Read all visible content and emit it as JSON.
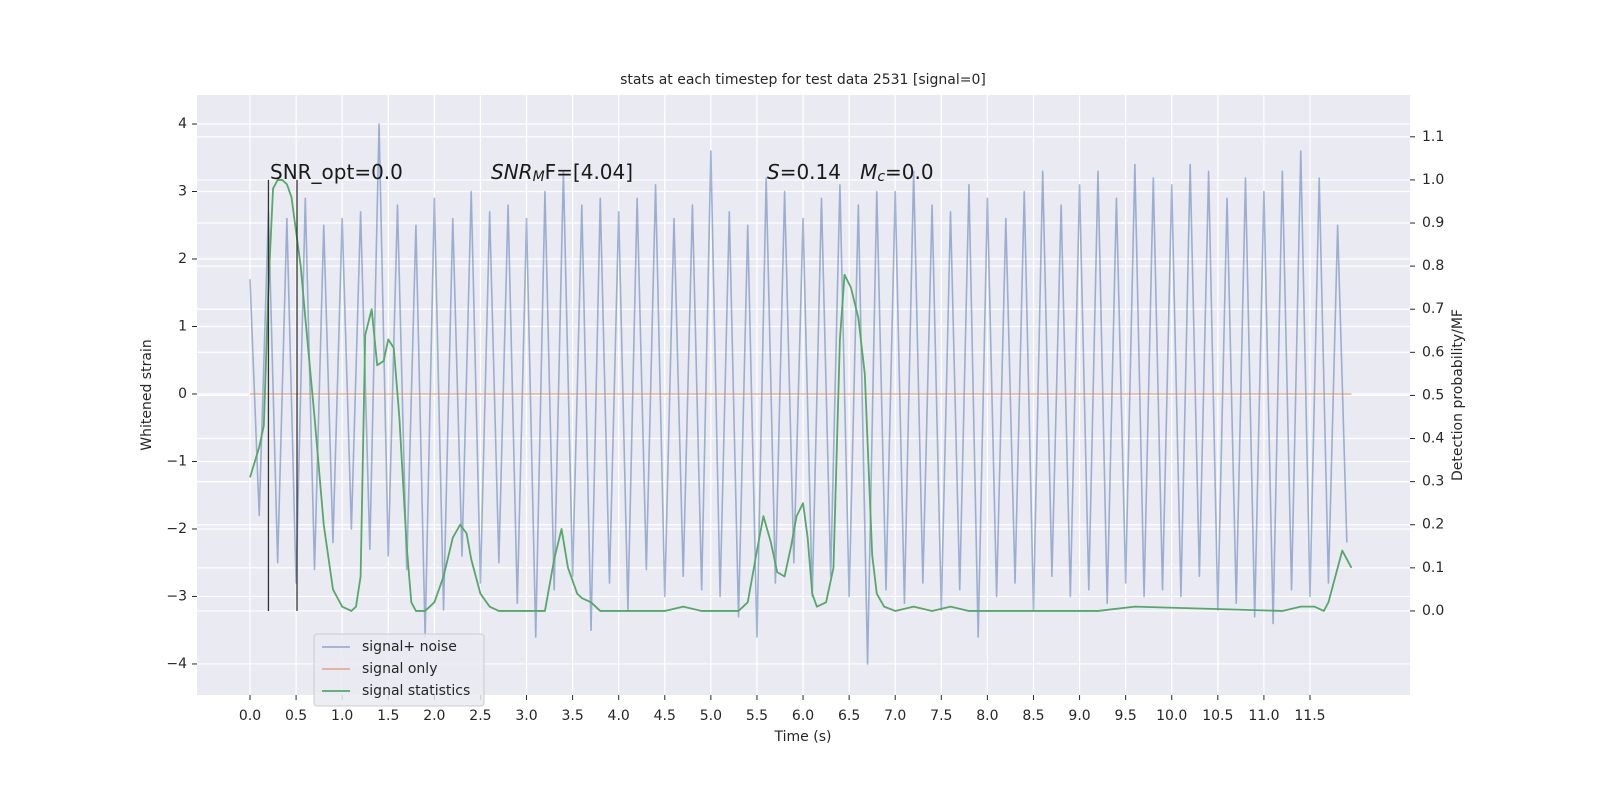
{
  "chart_data": {
    "type": "line",
    "title": "stats at each timestep for test data 2531 [signal=0]",
    "xlabel": "Time (s)",
    "ylabel": "Whitened strain",
    "y2label": "Detection probability/MF",
    "background": "#eaeaf2",
    "grid": true,
    "legend": "lower left",
    "xlim": [
      -0.575,
      12.585
    ],
    "ylim": [
      -4.46,
      4.43
    ],
    "y2lim": [
      -0.195,
      1.197
    ],
    "xticks": [
      {
        "value": 0,
        "label": "0.0"
      },
      0.5,
      {
        "value": 1,
        "label": "1.0"
      },
      1.5,
      {
        "value": 2,
        "label": "2.0"
      },
      2.5,
      {
        "value": 3,
        "label": "3.0"
      },
      3.5,
      {
        "value": 4,
        "label": "4.0"
      },
      4.5,
      {
        "value": 5,
        "label": "5.0"
      },
      5.5,
      {
        "value": 6,
        "label": "6.0"
      },
      6.5,
      {
        "value": 7,
        "label": "7.0"
      },
      7.5,
      {
        "value": 8,
        "label": "8.0"
      },
      8.5,
      {
        "value": 9,
        "label": "9.0"
      },
      9.5,
      {
        "value": 10,
        "label": "10.0"
      },
      10.5,
      {
        "value": 11,
        "label": "11.0"
      },
      11.5
    ],
    "yticks": [
      {
        "value": -4,
        "label": "−4"
      },
      {
        "value": -3,
        "label": "−3"
      },
      {
        "value": -2,
        "label": "−2"
      },
      {
        "value": -1,
        "label": "−1"
      },
      0,
      1,
      2,
      3,
      4
    ],
    "y2ticks": [
      {
        "value": 0,
        "label": "0.0"
      },
      0.1,
      0.2,
      0.3,
      0.4,
      0.5,
      0.6,
      0.7,
      0.8,
      0.9,
      {
        "value": 1,
        "label": "1.0"
      },
      1.1
    ],
    "annotations": [
      {
        "runs": [
          {
            "text": "SNR_opt=0.0"
          }
        ]
      },
      {
        "runs": [
          {
            "text": "SNR",
            "style": "italic"
          },
          {
            "text": "M",
            "style": "italic-sub"
          },
          {
            "text": "F=[4.04]"
          }
        ]
      },
      {
        "runs": [
          {
            "text": "S",
            "style": "italic"
          },
          {
            "text": "=0.14   "
          },
          {
            "text": "M",
            "style": "italic"
          },
          {
            "text": "c",
            "style": "italic-sub"
          },
          {
            "text": "=0.0"
          }
        ]
      }
    ],
    "vlines": {
      "x": [
        0.2,
        0.51
      ],
      "ymin": 0,
      "ymax": 1,
      "axis": "y2",
      "color": "#333333"
    },
    "series": [
      {
        "name": "signal+ noise",
        "color": "#4c72b0",
        "opacity": 0.5,
        "x": [
          0.0,
          0.1,
          0.2,
          0.3,
          0.4,
          0.5,
          0.6,
          0.7,
          0.8,
          0.9,
          1.0,
          1.1,
          1.2,
          1.3,
          1.4,
          1.5,
          1.6,
          1.7,
          1.8,
          1.9,
          2.0,
          2.1,
          2.2,
          2.3,
          2.4,
          2.5,
          2.6,
          2.7,
          2.8,
          2.9,
          3.0,
          3.1,
          3.2,
          3.3,
          3.4,
          3.5,
          3.6,
          3.7,
          3.8,
          3.9,
          4.0,
          4.1,
          4.2,
          4.3,
          4.4,
          4.5,
          4.6,
          4.7,
          4.8,
          4.9,
          5.0,
          5.1,
          5.2,
          5.3,
          5.4,
          5.5,
          5.6,
          5.7,
          5.8,
          5.9,
          6.0,
          6.1,
          6.2,
          6.3,
          6.4,
          6.5,
          6.6,
          6.7,
          6.8,
          6.9,
          7.0,
          7.1,
          7.2,
          7.3,
          7.4,
          7.5,
          7.6,
          7.7,
          7.8,
          7.9,
          8.0,
          8.1,
          8.2,
          8.3,
          8.4,
          8.5,
          8.6,
          8.7,
          8.8,
          8.9,
          9.0,
          9.1,
          9.2,
          9.3,
          9.4,
          9.5,
          9.6,
          9.7,
          9.8,
          9.9,
          10.0,
          10.1,
          10.2,
          10.3,
          10.4,
          10.5,
          10.6,
          10.7,
          10.8,
          10.9,
          11.0,
          11.1,
          11.2,
          11.3,
          11.4,
          11.5,
          11.6,
          11.7,
          11.8,
          11.9
        ],
        "values": [
          1.7,
          -1.8,
          2.7,
          -2.5,
          2.6,
          -2.8,
          2.9,
          -2.6,
          2.5,
          -2.2,
          2.6,
          -2.0,
          2.7,
          -2.3,
          4.0,
          -2.4,
          2.8,
          -2.6,
          2.5,
          -3.6,
          2.9,
          -3.2,
          2.6,
          -2.4,
          3.0,
          -2.8,
          2.7,
          -2.5,
          2.8,
          -3.1,
          2.6,
          -3.6,
          3.0,
          -2.9,
          3.3,
          -2.7,
          2.8,
          -3.5,
          2.9,
          -2.8,
          2.7,
          -3.2,
          2.9,
          -2.6,
          3.1,
          -3.0,
          2.6,
          -2.7,
          2.8,
          -2.9,
          3.6,
          -3.0,
          2.7,
          -3.3,
          2.5,
          -3.6,
          3.2,
          -2.8,
          3.0,
          -2.5,
          2.6,
          -3.0,
          2.9,
          -2.7,
          3.1,
          -3.0,
          2.8,
          -4.0,
          3.0,
          -2.9,
          3.0,
          -3.1,
          3.3,
          -2.8,
          2.8,
          -3.2,
          2.7,
          -2.9,
          3.1,
          -3.6,
          2.9,
          -3.0,
          2.6,
          -2.8,
          3.0,
          -3.2,
          3.3,
          -2.7,
          2.8,
          -3.0,
          3.1,
          -2.9,
          3.3,
          -3.1,
          2.9,
          -2.8,
          3.4,
          -3.0,
          3.2,
          -2.9,
          3.1,
          -3.0,
          3.4,
          -2.7,
          3.3,
          -3.2,
          2.9,
          -3.1,
          3.2,
          -3.3,
          3.0,
          -3.4,
          3.3,
          -2.9,
          3.6,
          -3.0,
          3.2,
          -2.8,
          2.5,
          -2.2
        ]
      },
      {
        "name": "signal only",
        "color": "#dd8452",
        "opacity": 0.6,
        "x": [
          0.0,
          11.95
        ],
        "values": [
          0,
          0
        ]
      },
      {
        "name": "signal statistics",
        "color": "#55a868",
        "opacity": 1,
        "axis": "y2",
        "x": [
          0.0,
          0.1,
          0.15,
          0.2,
          0.25,
          0.3,
          0.35,
          0.4,
          0.45,
          0.5,
          0.55,
          0.6,
          0.7,
          0.8,
          0.9,
          1.0,
          1.1,
          1.15,
          1.2,
          1.25,
          1.32,
          1.38,
          1.45,
          1.5,
          1.56,
          1.62,
          1.7,
          1.75,
          1.8,
          1.9,
          2.0,
          2.1,
          2.2,
          2.28,
          2.35,
          2.4,
          2.5,
          2.6,
          2.7,
          3.0,
          3.2,
          3.3,
          3.38,
          3.45,
          3.55,
          3.6,
          3.7,
          3.8,
          4.0,
          4.5,
          4.7,
          4.9,
          5.3,
          5.4,
          5.5,
          5.57,
          5.65,
          5.72,
          5.8,
          5.87,
          5.93,
          6.0,
          6.05,
          6.1,
          6.15,
          6.25,
          6.33,
          6.4,
          6.45,
          6.52,
          6.6,
          6.67,
          6.75,
          6.8,
          6.88,
          7.0,
          7.2,
          7.4,
          7.6,
          7.8,
          8.5,
          9.2,
          9.6,
          11.2,
          11.4,
          11.55,
          11.65,
          11.7,
          11.8,
          11.85,
          11.95
        ],
        "values": [
          0.31,
          0.38,
          0.43,
          0.75,
          0.98,
          1.0,
          1.0,
          0.99,
          0.96,
          0.88,
          0.8,
          0.68,
          0.45,
          0.2,
          0.05,
          0.01,
          0.0,
          0.01,
          0.08,
          0.64,
          0.7,
          0.57,
          0.58,
          0.63,
          0.61,
          0.45,
          0.15,
          0.02,
          0.0,
          0.0,
          0.02,
          0.08,
          0.17,
          0.2,
          0.18,
          0.12,
          0.04,
          0.01,
          0.0,
          0.0,
          0.0,
          0.12,
          0.19,
          0.1,
          0.04,
          0.03,
          0.02,
          0.0,
          0.0,
          0.0,
          0.01,
          0.0,
          0.0,
          0.02,
          0.14,
          0.22,
          0.16,
          0.09,
          0.08,
          0.15,
          0.22,
          0.25,
          0.17,
          0.04,
          0.01,
          0.02,
          0.1,
          0.63,
          0.78,
          0.75,
          0.68,
          0.55,
          0.13,
          0.04,
          0.01,
          0.0,
          0.01,
          0.0,
          0.01,
          0.0,
          0.0,
          0.0,
          0.01,
          0.0,
          0.01,
          0.01,
          0.0,
          0.02,
          0.1,
          0.14,
          0.1
        ]
      }
    ]
  }
}
